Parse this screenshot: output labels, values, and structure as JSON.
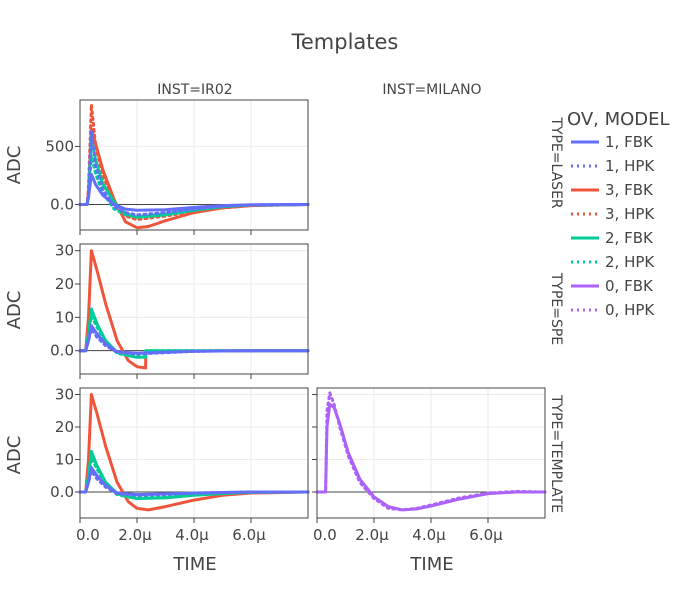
{
  "chart_data": {
    "type": "line",
    "title": "Templates",
    "xlabel": "TIME",
    "ylabel": "ADC",
    "x_unit_note": "",
    "x_tick_labels": [
      "0.0",
      "2.0μ",
      "4.0μ",
      "6.0μ"
    ],
    "x_ticks": [
      0,
      2,
      4,
      6
    ],
    "xlim": [
      0,
      8
    ],
    "columns": [
      "INST=IR02",
      "INST=MILANO"
    ],
    "rows": [
      "TYPE=LASER",
      "TYPE=SPE",
      "TYPE=TEMPLATE"
    ],
    "legend": {
      "title": "OV, MODEL",
      "position": "right",
      "entries": [
        {
          "label": "1, FBK",
          "color": "#636efa",
          "dash": "solid"
        },
        {
          "label": "1, HPK",
          "color": "#636efa",
          "dash": "dot"
        },
        {
          "label": "3, FBK",
          "color": "#ef553b",
          "dash": "solid"
        },
        {
          "label": "3, HPK",
          "color": "#ef553b",
          "dash": "dot"
        },
        {
          "label": "2, FBK",
          "color": "#00cc96",
          "dash": "solid"
        },
        {
          "label": "2, HPK",
          "color": "#00cc96",
          "dash": "dot"
        },
        {
          "label": "0, FBK",
          "color": "#ab63fa",
          "dash": "solid"
        },
        {
          "label": "0, HPK",
          "color": "#ab63fa",
          "dash": "dot"
        }
      ]
    },
    "panels": [
      {
        "row": "TYPE=LASER",
        "col": "INST=IR02",
        "ylim": [
          -220,
          900
        ],
        "y_ticks": [
          0,
          500
        ],
        "y_tick_labels": [
          "0.0",
          "500"
        ],
        "series": [
          {
            "entry": "3, FBK",
            "x": [
              0,
              0.25,
              0.3,
              0.4,
              0.55,
              0.8,
              1.2,
              1.6,
              2.0,
              2.4,
              3.0,
              4.0,
              5.0,
              6.0,
              8.0
            ],
            "y": [
              0,
              0,
              100,
              650,
              520,
              300,
              40,
              -150,
              -200,
              -190,
              -140,
              -70,
              -30,
              -10,
              0
            ]
          },
          {
            "entry": "3, HPK",
            "x": [
              0,
              0.25,
              0.3,
              0.4,
              0.55,
              0.8,
              1.2,
              1.6,
              2.0,
              3.0,
              4.0,
              5.0,
              6.0,
              8.0
            ],
            "y": [
              0,
              0,
              150,
              860,
              500,
              250,
              20,
              -100,
              -130,
              -100,
              -60,
              -30,
              -10,
              0
            ]
          },
          {
            "entry": "2, FBK",
            "x": [
              0,
              0.25,
              0.3,
              0.4,
              0.55,
              0.8,
              1.2,
              1.6,
              2.0,
              3.0,
              4.0,
              5.0,
              6.0,
              8.0
            ],
            "y": [
              0,
              0,
              80,
              580,
              380,
              180,
              20,
              -80,
              -110,
              -90,
              -50,
              -20,
              -5,
              0
            ]
          },
          {
            "entry": "2, HPK",
            "x": [
              0,
              0.25,
              0.3,
              0.4,
              0.55,
              0.8,
              1.2,
              1.6,
              2.0,
              3.0,
              4.0,
              5.0,
              6.0,
              8.0
            ],
            "y": [
              0,
              0,
              80,
              420,
              260,
              100,
              -40,
              -90,
              -110,
              -80,
              -40,
              -15,
              -5,
              0
            ]
          },
          {
            "entry": "1, FBK",
            "x": [
              0,
              0.25,
              0.3,
              0.4,
              0.55,
              0.8,
              1.2,
              1.6,
              2.0,
              3.0,
              4.0,
              5.0,
              6.0,
              8.0
            ],
            "y": [
              0,
              0,
              60,
              260,
              170,
              80,
              0,
              -40,
              -50,
              -45,
              -25,
              -10,
              -3,
              0
            ]
          },
          {
            "entry": "1, HPK",
            "x": [
              0,
              0.25,
              0.3,
              0.4,
              0.55,
              0.8,
              1.2,
              1.6,
              2.0,
              3.0,
              4.0,
              5.0,
              6.0,
              8.0
            ],
            "y": [
              0,
              0,
              100,
              630,
              330,
              130,
              -20,
              -70,
              -90,
              -70,
              -40,
              -15,
              -5,
              0
            ]
          }
        ]
      },
      {
        "row": "TYPE=SPE",
        "col": "INST=IR02",
        "ylim": [
          -7,
          32
        ],
        "y_ticks": [
          0,
          10,
          20,
          30
        ],
        "y_tick_labels": [
          "0.0",
          "10",
          "20",
          "30"
        ],
        "series": [
          {
            "entry": "3, FBK",
            "x": [
              0,
              0.2,
              0.3,
              0.4,
              0.6,
              0.9,
              1.3,
              1.7,
              2.0,
              2.3,
              2.31,
              3.0,
              4.0,
              5.0,
              6.0,
              8.0
            ],
            "y": [
              0,
              0,
              10,
              30,
              24,
              14,
              3,
              -3,
              -4.8,
              -5.2,
              -0.5,
              -0.4,
              -0.2,
              0,
              0,
              0
            ]
          },
          {
            "entry": "2, FBK",
            "x": [
              0,
              0.2,
              0.3,
              0.4,
              0.6,
              0.9,
              1.3,
              1.7,
              2.0,
              2.3,
              2.31,
              3.0,
              4.0,
              6.0,
              8.0
            ],
            "y": [
              0,
              0,
              5,
              12.5,
              8,
              3,
              -0.5,
              -1.5,
              -2,
              -2,
              0,
              0,
              0,
              0,
              0
            ]
          },
          {
            "entry": "2, HPK",
            "x": [
              0,
              0.2,
              0.3,
              0.4,
              0.6,
              0.9,
              1.3,
              1.7,
              2.0,
              2.3,
              2.31,
              3.0,
              4.0,
              6.0,
              8.0
            ],
            "y": [
              0,
              0,
              4,
              10.5,
              7,
              2.5,
              -0.8,
              -1.5,
              -1.8,
              -1.8,
              0,
              0,
              0,
              0,
              0
            ]
          },
          {
            "entry": "1, FBK",
            "x": [
              0,
              0.2,
              0.3,
              0.4,
              0.6,
              0.9,
              1.3,
              2.0,
              3.0,
              4.0,
              6.0,
              8.0
            ],
            "y": [
              0,
              0,
              3,
              7.5,
              5,
              2,
              -0.3,
              -0.8,
              -0.5,
              -0.2,
              0,
              0
            ]
          },
          {
            "entry": "1, HPK",
            "x": [
              0,
              0.2,
              0.3,
              0.4,
              0.6,
              0.9,
              1.3,
              2.0,
              3.0,
              4.0,
              6.0,
              8.0
            ],
            "y": [
              0,
              0,
              3,
              6.5,
              4,
              1.5,
              -0.5,
              -1,
              -0.6,
              -0.2,
              0,
              0
            ]
          }
        ]
      },
      {
        "row": "TYPE=TEMPLATE",
        "col": "INST=IR02",
        "ylim": [
          -8,
          32
        ],
        "y_ticks": [
          0,
          10,
          20,
          30
        ],
        "y_tick_labels": [
          "0.0",
          "10",
          "20",
          "30"
        ],
        "series": [
          {
            "entry": "3, FBK",
            "x": [
              0,
              0.2,
              0.3,
              0.4,
              0.6,
              0.9,
              1.3,
              1.7,
              2.0,
              2.4,
              3.0,
              4.0,
              5.0,
              6.0,
              8.0
            ],
            "y": [
              0,
              0,
              10,
              30,
              24,
              14,
              3,
              -3,
              -5,
              -5.5,
              -4.5,
              -2.5,
              -1,
              -0.3,
              0
            ]
          },
          {
            "entry": "2, FBK",
            "x": [
              0,
              0.2,
              0.3,
              0.4,
              0.6,
              0.9,
              1.3,
              1.7,
              2.0,
              3.0,
              4.0,
              5.0,
              6.0,
              8.0
            ],
            "y": [
              0,
              0,
              5,
              12.5,
              8,
              3,
              -0.5,
              -1.5,
              -2,
              -1.8,
              -1,
              -0.5,
              -0.1,
              0
            ]
          },
          {
            "entry": "2, HPK",
            "x": [
              0,
              0.2,
              0.3,
              0.4,
              0.6,
              0.9,
              1.3,
              1.7,
              2.0,
              3.0,
              4.0,
              5.0,
              6.0,
              8.0
            ],
            "y": [
              0,
              0,
              4,
              10.5,
              7,
              2.5,
              -0.8,
              -1.5,
              -1.8,
              -1.5,
              -0.8,
              -0.3,
              -0.1,
              0
            ]
          },
          {
            "entry": "1, FBK",
            "x": [
              0,
              0.2,
              0.3,
              0.4,
              0.6,
              0.9,
              1.3,
              2.0,
              3.0,
              4.0,
              6.0,
              8.0
            ],
            "y": [
              0,
              0,
              3,
              7.5,
              5,
              2,
              -0.3,
              -0.8,
              -0.6,
              -0.3,
              0,
              0
            ]
          },
          {
            "entry": "1, HPK",
            "x": [
              0,
              0.2,
              0.3,
              0.4,
              0.6,
              0.9,
              1.3,
              2.0,
              3.0,
              4.0,
              6.0,
              8.0
            ],
            "y": [
              0,
              0,
              3,
              6.5,
              4,
              1.5,
              -0.5,
              -1,
              -0.7,
              -0.3,
              0,
              0
            ]
          }
        ]
      },
      {
        "row": "TYPE=TEMPLATE",
        "col": "INST=MILANO",
        "ylim": [
          -8,
          32
        ],
        "y_ticks": [
          0,
          10,
          20,
          30
        ],
        "y_tick_labels": [
          "0.0",
          "10",
          "20",
          "30"
        ],
        "series": [
          {
            "entry": "0, FBK",
            "x": [
              0,
              0.3,
              0.35,
              0.45,
              0.6,
              0.8,
              1.1,
              1.5,
              2.0,
              2.5,
              3.0,
              3.5,
              4.0,
              5.0,
              6.0,
              7.0,
              8.0
            ],
            "y": [
              0,
              0,
              20,
              27,
              26,
              21,
              12,
              4,
              -1.5,
              -4.5,
              -5.5,
              -5.2,
              -4.3,
              -2.2,
              -0.5,
              0,
              0
            ]
          },
          {
            "entry": "0, HPK",
            "x": [
              0,
              0.3,
              0.35,
              0.45,
              0.6,
              0.8,
              1.1,
              1.5,
              2.0,
              2.5,
              3.0,
              3.5,
              4.0,
              5.0,
              6.0,
              7.0,
              8.0
            ],
            "y": [
              0,
              0,
              25,
              30.5,
              27,
              20,
              11,
              3,
              -2,
              -5,
              -5.5,
              -5,
              -4,
              -1.8,
              -0.3,
              0.2,
              0
            ]
          }
        ]
      }
    ]
  }
}
